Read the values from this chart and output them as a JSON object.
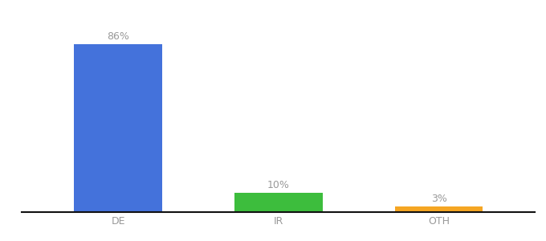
{
  "categories": [
    "DE",
    "IR",
    "OTH"
  ],
  "values": [
    86,
    10,
    3
  ],
  "bar_colors": [
    "#4472DB",
    "#3DBD3D",
    "#F5A623"
  ],
  "label_texts": [
    "86%",
    "10%",
    "3%"
  ],
  "background_color": "#ffffff",
  "ylim": [
    0,
    100
  ],
  "label_color": "#999999",
  "label_fontsize": 9,
  "tick_fontsize": 9,
  "tick_color": "#999999",
  "bar_width": 0.55,
  "bottom_spine_color": "#111111"
}
